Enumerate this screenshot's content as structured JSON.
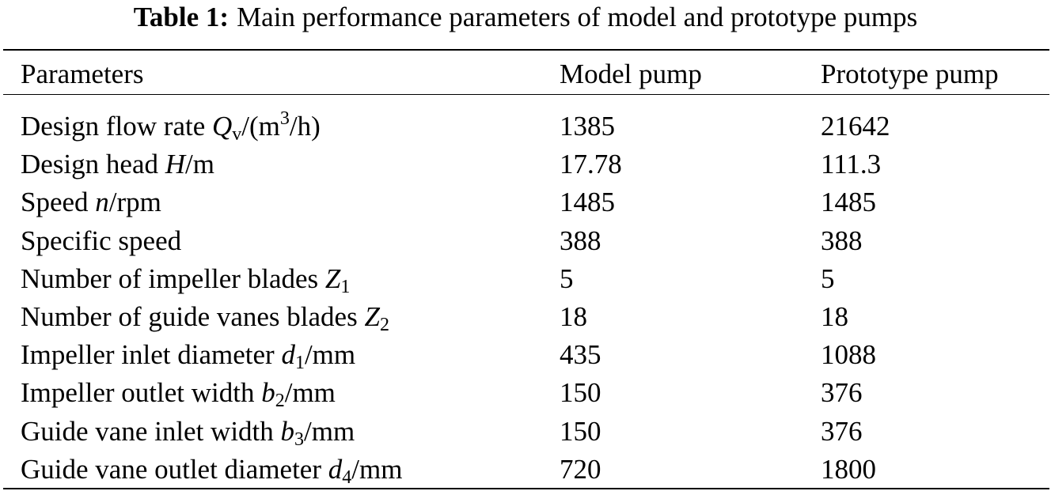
{
  "caption": {
    "label": "Table 1:",
    "text": "Main performance parameters of model and prototype pumps"
  },
  "table": {
    "headers": [
      "Parameters",
      "Model pump",
      "Prototype pump"
    ],
    "rows": [
      {
        "pre": "Design flow rate ",
        "sym": "Q",
        "sub": "v",
        "sup": "",
        "post": "/(m",
        "sup2": "3",
        "post2": "/h)",
        "model": "1385",
        "prototype": "21642"
      },
      {
        "pre": "Design head ",
        "sym": "H",
        "sub": "",
        "post": "/m",
        "model": "17.78",
        "prototype": "111.3"
      },
      {
        "pre": "Speed ",
        "sym": "n",
        "sub": "",
        "post": "/rpm",
        "model": "1485",
        "prototype": "1485"
      },
      {
        "pre": "Specific speed",
        "sym": "",
        "sub": "",
        "post": "",
        "model": "388",
        "prototype": "388"
      },
      {
        "pre": "Number of impeller blades ",
        "sym": "Z",
        "sub": "1",
        "post": "",
        "model": "5",
        "prototype": "5"
      },
      {
        "pre": "Number of guide vanes blades ",
        "sym": "Z",
        "sub": "2",
        "post": "",
        "model": "18",
        "prototype": "18"
      },
      {
        "pre": "Impeller inlet diameter ",
        "sym": "d",
        "sub": "1",
        "post": "/mm",
        "model": "435",
        "prototype": "1088"
      },
      {
        "pre": "Impeller outlet width ",
        "sym": "b",
        "sub": "2",
        "post": "/mm",
        "model": "150",
        "prototype": "376"
      },
      {
        "pre": "Guide vane inlet width ",
        "sym": "b",
        "sub": "3",
        "post": "/mm",
        "model": "150",
        "prototype": "376"
      },
      {
        "pre": "Guide vane outlet diameter ",
        "sym": "d",
        "sub": "4",
        "post": "/mm",
        "model": "720",
        "prototype": "1800"
      }
    ]
  }
}
